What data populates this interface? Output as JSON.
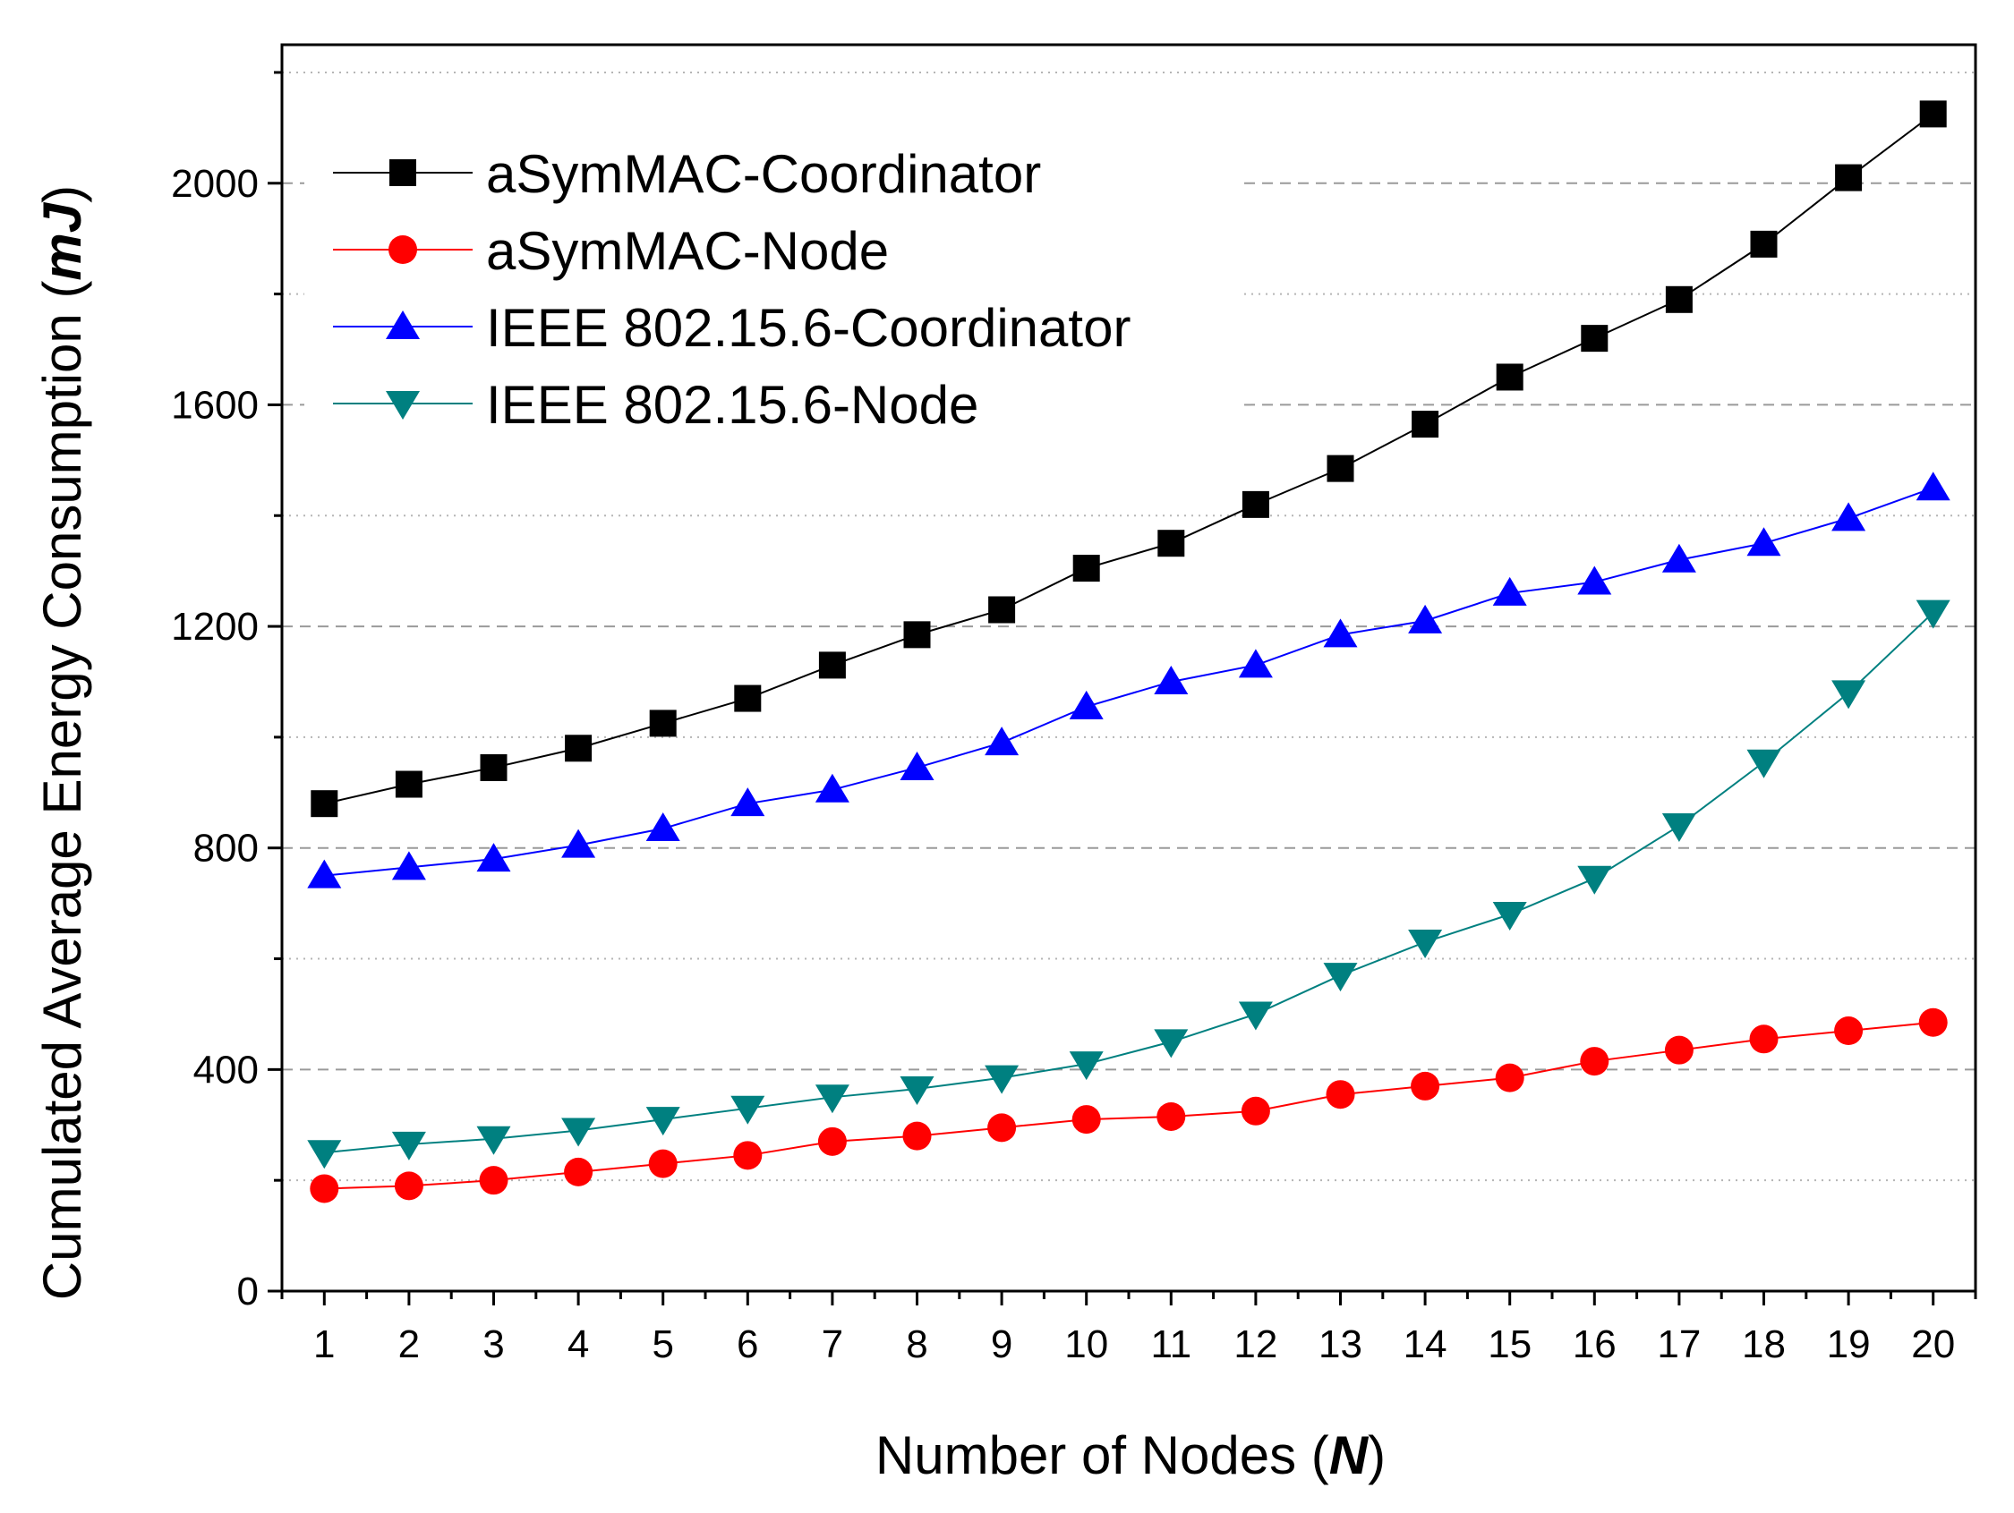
{
  "chart_data": {
    "type": "line",
    "title": "",
    "xlabel": "Number of Nodes (",
    "xlabel_var": "N",
    "xlabel_close": ")",
    "ylabel": "Cumulated Average Energy Consumption (",
    "ylabel_var": "mJ",
    "ylabel_close": ")",
    "x": [
      1,
      2,
      3,
      4,
      5,
      6,
      7,
      8,
      9,
      10,
      11,
      12,
      13,
      14,
      15,
      16,
      17,
      18,
      19,
      20
    ],
    "xlim": [
      0.5,
      20.5
    ],
    "ylim": [
      0,
      2250
    ],
    "yticks": [
      0,
      400,
      800,
      1200,
      1600,
      2000
    ],
    "yticks_minor": [
      200,
      600,
      1000,
      1400,
      1800,
      2200
    ],
    "grid": true,
    "legend_position": "top-left",
    "series": [
      {
        "name": "aSymMAC-Coordinator",
        "marker": "square",
        "color": "#000000",
        "values": [
          880,
          915,
          945,
          980,
          1025,
          1070,
          1130,
          1185,
          1230,
          1305,
          1350,
          1420,
          1485,
          1565,
          1650,
          1720,
          1790,
          1890,
          2010,
          2125
        ]
      },
      {
        "name": "aSymMAC-Node",
        "marker": "circle",
        "color": "#ff0000",
        "values": [
          185,
          190,
          200,
          215,
          230,
          245,
          270,
          280,
          295,
          310,
          315,
          325,
          355,
          370,
          385,
          415,
          435,
          455,
          470,
          485
        ]
      },
      {
        "name": "IEEE 802.15.6-Coordinator",
        "marker": "triangle-up",
        "color": "#0000ff",
        "values": [
          750,
          765,
          780,
          805,
          835,
          880,
          905,
          945,
          990,
          1055,
          1100,
          1130,
          1185,
          1210,
          1260,
          1280,
          1320,
          1350,
          1395,
          1450
        ]
      },
      {
        "name": "IEEE 802.15.6-Node",
        "marker": "triangle-down",
        "color": "#008080",
        "values": [
          250,
          265,
          275,
          290,
          310,
          330,
          350,
          365,
          385,
          410,
          450,
          500,
          570,
          630,
          680,
          745,
          840,
          955,
          1080,
          1225
        ]
      }
    ]
  }
}
